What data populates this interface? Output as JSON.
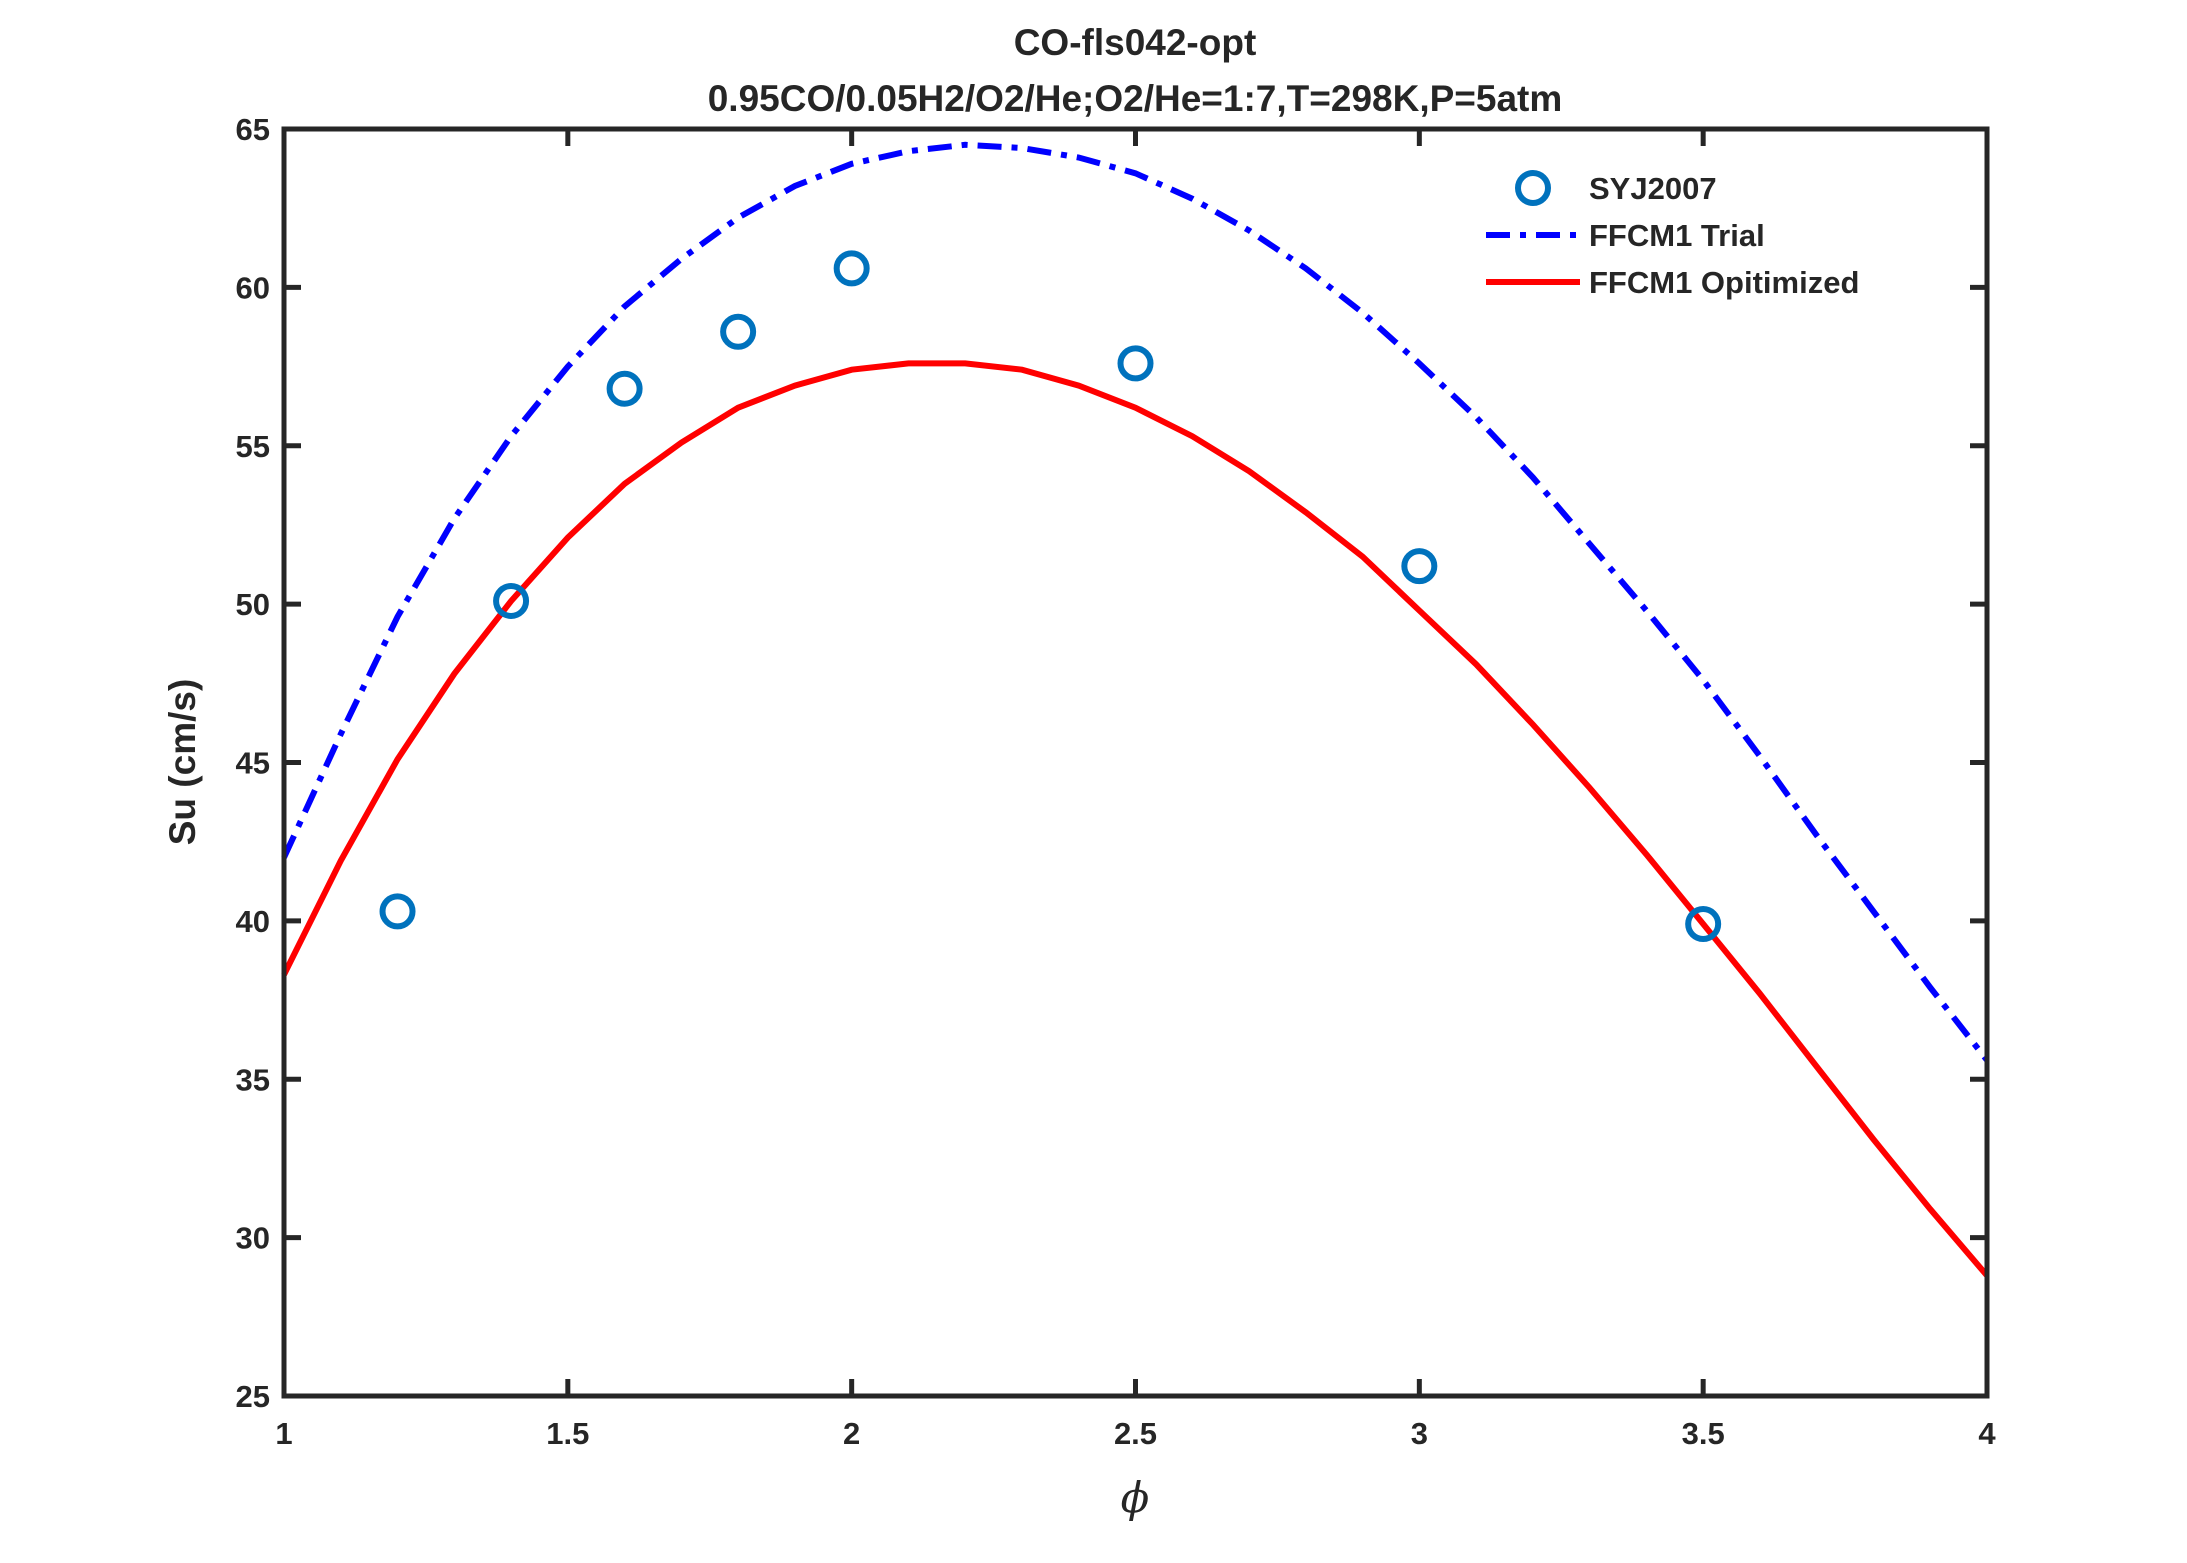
{
  "chart_data": {
    "type": "line",
    "title": "CO-fls042-opt",
    "subtitle": "0.95CO/0.05H2/O2/He;O2/He=1:7,T=298K,P=5atm",
    "xlabel": "ϕ",
    "ylabel": "Su (cm/s)",
    "xlim": [
      1,
      4
    ],
    "ylim": [
      25,
      65
    ],
    "xticks": [
      "1",
      "1.5",
      "2",
      "2.5",
      "3",
      "3.5",
      "4"
    ],
    "yticks": [
      "25",
      "30",
      "35",
      "40",
      "45",
      "50",
      "55",
      "60",
      "65"
    ],
    "grid": false,
    "legend_position": "top-right",
    "series": [
      {
        "name": "SYJ2007",
        "style": "markers-circle",
        "color": "#0072BD",
        "x": [
          1.2,
          1.4,
          1.6,
          1.8,
          2.0,
          2.5,
          3.0,
          3.5
        ],
        "y": [
          40.3,
          50.1,
          56.8,
          58.6,
          60.6,
          57.6,
          51.2,
          39.9
        ]
      },
      {
        "name": "FFCM1 Trial",
        "style": "dash-dot",
        "color": "#0000FF",
        "x": [
          1.0,
          1.1,
          1.2,
          1.3,
          1.4,
          1.5,
          1.6,
          1.7,
          1.8,
          1.9,
          2.0,
          2.1,
          2.2,
          2.3,
          2.4,
          2.5,
          2.6,
          2.7,
          2.8,
          2.9,
          3.0,
          3.1,
          3.2,
          3.3,
          3.4,
          3.5,
          3.6,
          3.7,
          3.8,
          3.9,
          4.0
        ],
        "y": [
          42.0,
          45.9,
          49.6,
          52.7,
          55.3,
          57.5,
          59.4,
          60.9,
          62.2,
          63.2,
          63.9,
          64.3,
          64.5,
          64.4,
          64.1,
          63.6,
          62.8,
          61.8,
          60.6,
          59.2,
          57.6,
          55.9,
          54.0,
          51.9,
          49.8,
          47.6,
          45.2,
          42.7,
          40.3,
          37.9,
          35.6
        ]
      },
      {
        "name": "FFCM1 Opitimized",
        "style": "solid",
        "color": "#FF0000",
        "x": [
          1.0,
          1.1,
          1.2,
          1.3,
          1.4,
          1.5,
          1.6,
          1.7,
          1.8,
          1.9,
          2.0,
          2.1,
          2.2,
          2.3,
          2.4,
          2.5,
          2.6,
          2.7,
          2.8,
          2.9,
          3.0,
          3.1,
          3.2,
          3.3,
          3.4,
          3.5,
          3.6,
          3.7,
          3.8,
          3.9,
          4.0
        ],
        "y": [
          38.3,
          41.9,
          45.1,
          47.8,
          50.1,
          52.1,
          53.8,
          55.1,
          56.2,
          56.9,
          57.4,
          57.6,
          57.6,
          57.4,
          56.9,
          56.2,
          55.3,
          54.2,
          52.9,
          51.5,
          49.8,
          48.1,
          46.2,
          44.2,
          42.1,
          39.9,
          37.7,
          35.4,
          33.1,
          30.9,
          28.8
        ]
      }
    ]
  }
}
